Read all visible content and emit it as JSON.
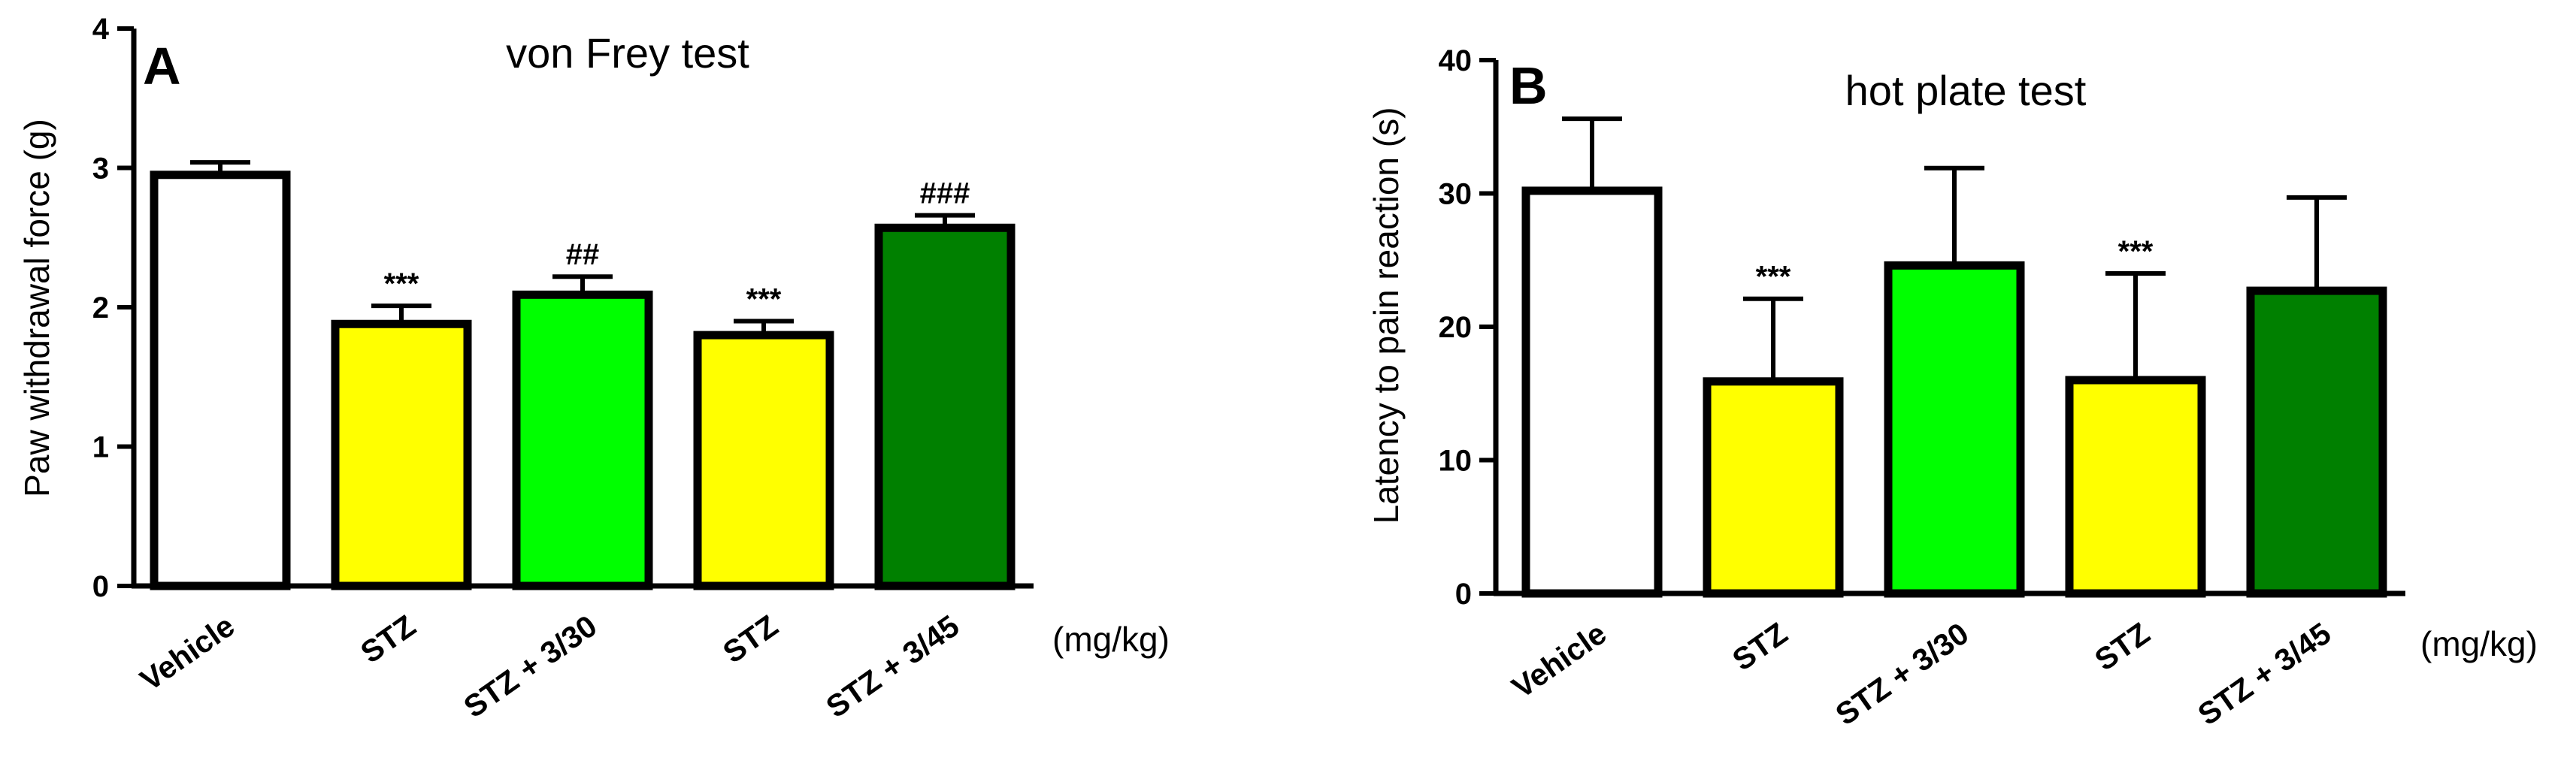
{
  "chart_data": [
    {
      "type": "bar",
      "panel": "A",
      "title": "von Frey test",
      "ylabel": "Paw withdrawal force (g)",
      "xlabel": "",
      "unit_label": "(mg/kg)",
      "ylim": [
        0,
        4
      ],
      "yticks": [
        "0",
        "1",
        "2",
        "3",
        "4"
      ],
      "categories": [
        "Vehicle",
        "STZ",
        "STZ + 3/30",
        "STZ",
        "STZ + 3/45"
      ],
      "values": [
        2.95,
        1.88,
        2.09,
        1.8,
        2.57
      ],
      "errors": [
        0.09,
        0.13,
        0.13,
        0.1,
        0.09
      ],
      "significance": [
        "",
        "***",
        "##",
        "***",
        "###"
      ],
      "colors": [
        "#ffffff",
        "#ffff00",
        "#00ff00",
        "#ffff00",
        "#008000"
      ],
      "grid": false
    },
    {
      "type": "bar",
      "panel": "B",
      "title": "hot plate test",
      "ylabel": "Latency to pain reaction (s)",
      "xlabel": "",
      "unit_label": "(mg/kg)",
      "ylim": [
        0,
        40
      ],
      "yticks": [
        "0",
        "10",
        "20",
        "30",
        "40"
      ],
      "categories": [
        "Vehicle",
        "STZ",
        "STZ + 3/30",
        "STZ",
        "STZ + 3/45"
      ],
      "values": [
        30.2,
        15.9,
        24.6,
        16.0,
        22.7
      ],
      "errors": [
        5.4,
        6.2,
        7.3,
        8.0,
        7.0
      ],
      "significance": [
        "",
        "***",
        "",
        "***",
        ""
      ],
      "colors": [
        "#ffffff",
        "#ffff00",
        "#00ff00",
        "#ffff00",
        "#008000"
      ],
      "grid": false
    }
  ]
}
